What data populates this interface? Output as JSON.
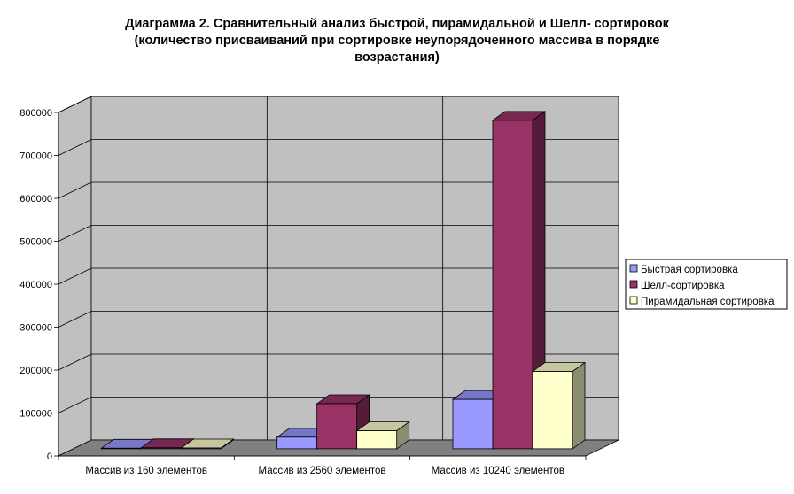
{
  "chart_data": {
    "type": "bar",
    "title_lines": [
      "Диаграмма 2. Сравнительный анализ быстрой, пирамидальной и Шелл- сортировок",
      "(количество присваиваний при сортировке неупорядоченного массива в порядке",
      "возрастания)"
    ],
    "categories": [
      "Массив из 160 элементов",
      "Массив из 2560 элементов",
      "Массив из 10240 элементов"
    ],
    "series": [
      {
        "name": "Быстрая сортировка",
        "values": [
          1200,
          27000,
          115000
        ],
        "color": "#9999FF"
      },
      {
        "name": "Шелл-сортировка",
        "values": [
          2200,
          105000,
          765000
        ],
        "color": "#993366"
      },
      {
        "name": "Пирамидальная сортировка",
        "values": [
          1800,
          42000,
          180000
        ],
        "color": "#FFFFCC"
      }
    ],
    "ylim": [
      0,
      800000
    ],
    "yticks": [
      "0",
      "100000",
      "200000",
      "300000",
      "400000",
      "500000",
      "600000",
      "700000",
      "800000"
    ],
    "grid": true,
    "three_d": true,
    "wall_color": "#C0C0C0",
    "legend_position": "right"
  }
}
